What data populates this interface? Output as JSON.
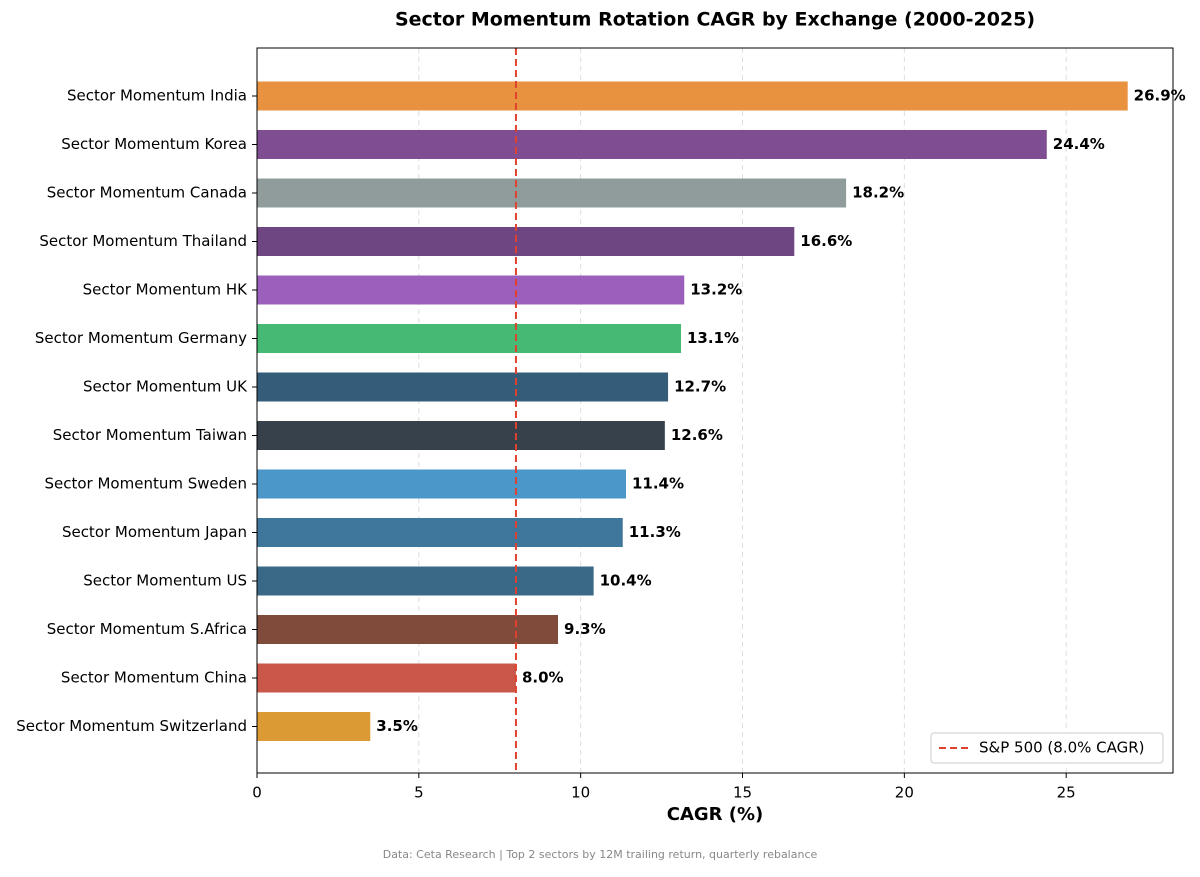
{
  "chart_data": {
    "type": "bar",
    "orientation": "horizontal",
    "title": "Sector Momentum Rotation CAGR by Exchange (2000-2025)",
    "xlabel": "CAGR (%)",
    "footnote": "Data: Ceta Research | Top 2 sectors by 12M trailing return, quarterly rebalance",
    "categories": [
      "Sector Momentum India",
      "Sector Momentum Korea",
      "Sector Momentum Canada",
      "Sector Momentum Thailand",
      "Sector Momentum HK",
      "Sector Momentum Germany",
      "Sector Momentum UK",
      "Sector Momentum Taiwan",
      "Sector Momentum Sweden",
      "Sector Momentum Japan",
      "Sector Momentum US",
      "Sector Momentum S.Africa",
      "Sector Momentum China",
      "Sector Momentum Switzerland"
    ],
    "values": [
      26.9,
      24.4,
      18.2,
      16.6,
      13.2,
      13.1,
      12.7,
      12.6,
      11.4,
      11.3,
      10.4,
      9.3,
      8.0,
      3.5
    ],
    "value_labels": [
      "26.9%",
      "24.4%",
      "18.2%",
      "16.6%",
      "13.2%",
      "13.1%",
      "12.7%",
      "12.6%",
      "11.4%",
      "11.3%",
      "10.4%",
      "9.3%",
      "8.0%",
      "3.5%"
    ],
    "colors": [
      "#e8913f",
      "#7f4d92",
      "#909c9b",
      "#6e4681",
      "#9b5fbc",
      "#46b975",
      "#355c79",
      "#36414b",
      "#4b97ca",
      "#3e769c",
      "#3a6887",
      "#804b3b",
      "#c9574a",
      "#dc9a35"
    ],
    "xlim": [
      0,
      28.3
    ],
    "xticks": [
      0,
      5,
      10,
      15,
      20,
      25
    ],
    "grid": true,
    "reference_line": {
      "value": 8.0,
      "label": "S&P 500 (8.0% CAGR)",
      "color": "#e0412f"
    },
    "legend": "lower right"
  }
}
